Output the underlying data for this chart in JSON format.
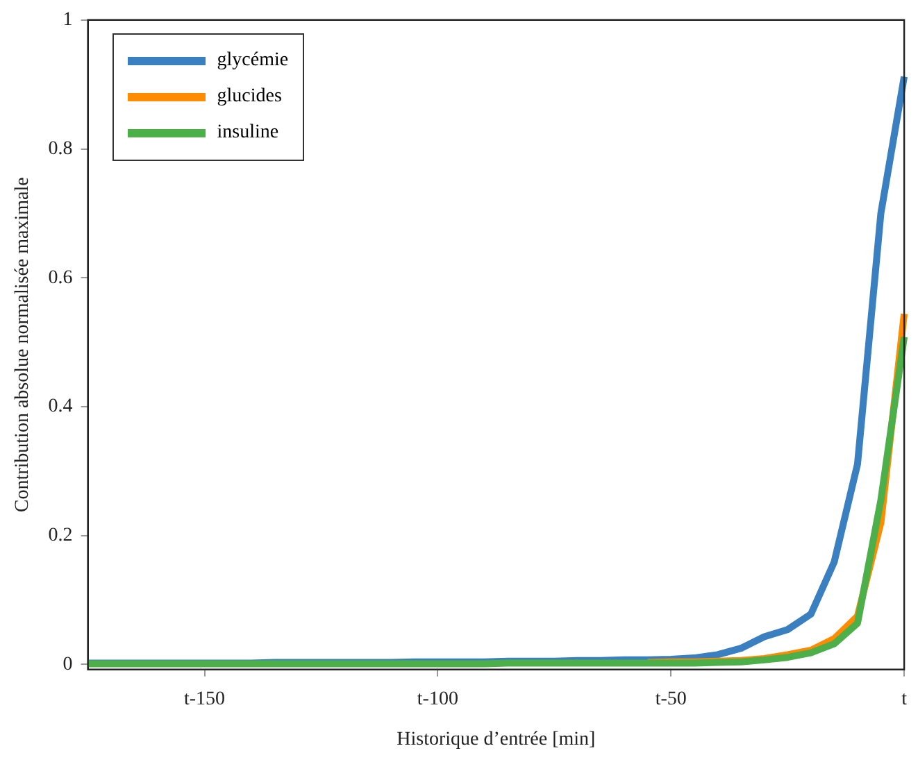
{
  "chart_data": {
    "type": "line",
    "xlabel": "Historique d’entrée [min]",
    "ylabel": "Contribution absolue normalisée maximale",
    "categories": [
      null,
      null,
      null,
      null,
      null,
      "t-150",
      null,
      null,
      null,
      null,
      null,
      null,
      null,
      null,
      null,
      "t-100",
      null,
      null,
      null,
      null,
      null,
      null,
      null,
      null,
      null,
      "t-50",
      null,
      null,
      null,
      null,
      null,
      null,
      null,
      null,
      null,
      "t"
    ],
    "series": [
      {
        "name": "glycémie",
        "color": "#3a7fbf",
        "values": [
          0.002,
          0.002,
          0.002,
          0.002,
          0.002,
          0.002,
          0.002,
          0.002,
          0.003,
          0.003,
          0.003,
          0.003,
          0.003,
          0.003,
          0.004,
          0.004,
          0.004,
          0.004,
          0.005,
          0.005,
          0.005,
          0.006,
          0.006,
          0.007,
          0.007,
          0.008,
          0.01,
          0.015,
          0.025,
          0.043,
          0.054,
          0.078,
          0.159,
          0.311,
          0.7,
          0.912
        ]
      },
      {
        "name": "glucides",
        "color": "#ff8c00",
        "values": [
          null,
          null,
          null,
          null,
          null,
          null,
          null,
          null,
          null,
          null,
          null,
          null,
          null,
          null,
          null,
          null,
          null,
          null,
          null,
          null,
          null,
          null,
          null,
          null,
          0.003,
          0.004,
          0.004,
          0.005,
          0.006,
          0.009,
          0.015,
          0.022,
          0.04,
          0.075,
          0.22,
          0.544
        ]
      },
      {
        "name": "insuline",
        "color": "#4daf4a",
        "values": [
          0.001,
          0.001,
          0.001,
          0.001,
          0.001,
          0.001,
          0.001,
          0.001,
          0.001,
          0.001,
          0.001,
          0.001,
          0.001,
          0.001,
          0.001,
          0.001,
          0.001,
          0.001,
          0.002,
          0.002,
          0.002,
          0.002,
          0.002,
          0.002,
          0.002,
          0.002,
          0.002,
          0.003,
          0.004,
          0.007,
          0.011,
          0.018,
          0.032,
          0.064,
          0.255,
          0.508
        ]
      }
    ],
    "ylim": [
      -0.008,
      1
    ],
    "yticks": [
      0,
      0.2,
      0.4,
      0.6,
      0.8,
      1
    ],
    "grid": false,
    "legend": "top left",
    "marker": "none",
    "line_style": "solid"
  }
}
